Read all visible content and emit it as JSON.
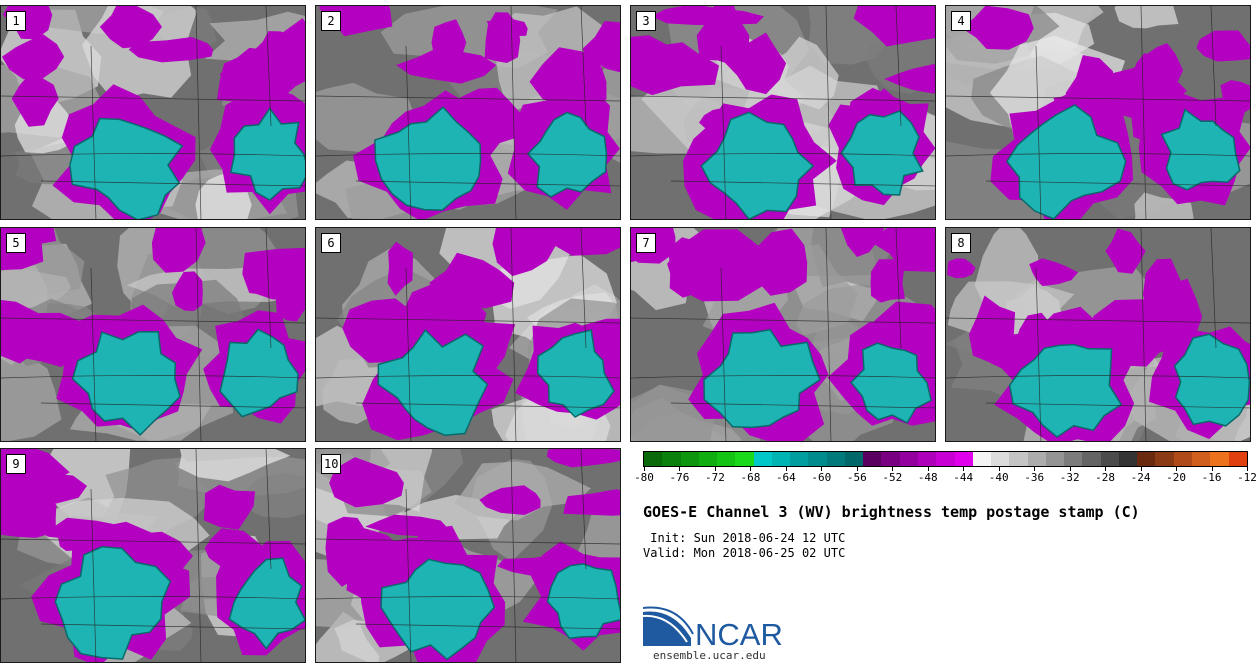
{
  "stamps": [
    {
      "label": "1"
    },
    {
      "label": "2"
    },
    {
      "label": "3"
    },
    {
      "label": "4"
    },
    {
      "label": "5"
    },
    {
      "label": "6"
    },
    {
      "label": "7"
    },
    {
      "label": "8"
    },
    {
      "label": "9"
    },
    {
      "label": "10"
    }
  ],
  "colorbar": {
    "min": -80,
    "max": -12,
    "step": 2,
    "tick_labels": [
      "-80",
      "-76",
      "-72",
      "-68",
      "-64",
      "-60",
      "-56",
      "-52",
      "-48",
      "-44",
      "-40",
      "-36",
      "-32",
      "-28",
      "-24",
      "-20",
      "-16",
      "-12"
    ],
    "colors": [
      "#0a6a0a",
      "#0c800c",
      "#0e960e",
      "#10ad10",
      "#14c414",
      "#1ad91a",
      "#00c8c8",
      "#00b4b4",
      "#009e9e",
      "#008c8c",
      "#007a7a",
      "#006868",
      "#5a0060",
      "#7a0082",
      "#9400a0",
      "#ae00ba",
      "#c800d4",
      "#e000ec",
      "#f4f4f4",
      "#dcdcdc",
      "#c4c4c4",
      "#acacac",
      "#949494",
      "#7c7c7c",
      "#646464",
      "#4c4c4c",
      "#343434",
      "#6a2a10",
      "#8a3a14",
      "#b04a18",
      "#d05e1c",
      "#ec721e",
      "#e04010"
    ],
    "palette_note": ""
  },
  "title": "GOES-E Channel 3 (WV) brightness temp postage stamp (C)",
  "init": " Init: Sun 2018-06-24 12 UTC",
  "valid": "Valid: Mon 2018-06-25 02 UTC",
  "logo": {
    "text": "NCAR",
    "color": "#1f5aa0"
  },
  "site": "ensemble.ucar.edu"
}
